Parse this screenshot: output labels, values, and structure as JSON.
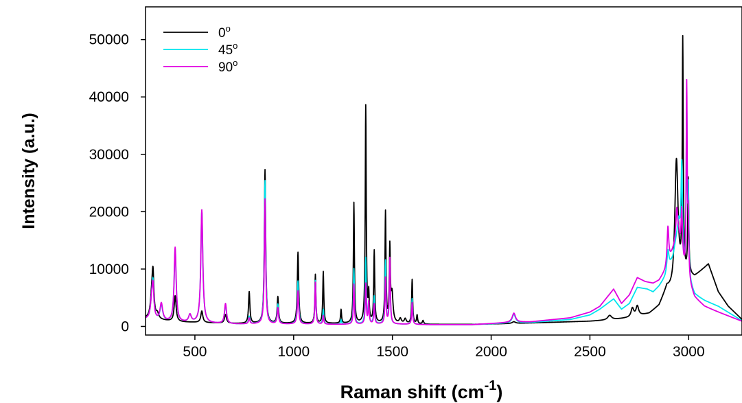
{
  "chart_data": {
    "type": "line",
    "title": "",
    "xlabel": "Raman shift (cm",
    "xlabel_superscript": "-1",
    "xlabel_suffix": ")",
    "ylabel": "Intensity (a.u.)",
    "xlim": [
      250,
      3270
    ],
    "ylim": [
      -1500,
      55700
    ],
    "xticks": [
      500,
      1000,
      1500,
      2000,
      2500,
      3000
    ],
    "yticks": [
      0,
      10000,
      20000,
      30000,
      40000,
      50000
    ],
    "grid": false,
    "legend_position": "top-left",
    "line_width": 1.8,
    "series": [
      {
        "name": "0°",
        "name_base": "0",
        "name_superscript": "o",
        "color": "#000000",
        "baseline": [
          [
            250,
            1400
          ],
          [
            300,
            1200
          ],
          [
            400,
            800
          ],
          [
            700,
            500
          ],
          [
            1000,
            500
          ],
          [
            1200,
            500
          ],
          [
            1500,
            500
          ],
          [
            1700,
            350
          ],
          [
            1900,
            350
          ],
          [
            2100,
            500
          ],
          [
            2300,
            700
          ],
          [
            2500,
            900
          ],
          [
            2600,
            1100
          ],
          [
            2700,
            1500
          ],
          [
            2800,
            2200
          ],
          [
            2850,
            3500
          ],
          [
            2890,
            6500
          ],
          [
            2920,
            5500
          ],
          [
            2980,
            8500
          ],
          [
            3030,
            8500
          ],
          [
            3060,
            9500
          ],
          [
            3100,
            10800
          ],
          [
            3150,
            6000
          ],
          [
            3200,
            3500
          ],
          [
            3270,
            1200
          ]
        ],
        "peaks": [
          [
            282,
            4000,
            8
          ],
          [
            288,
            6500,
            5
          ],
          [
            310,
            900,
            8
          ],
          [
            400,
            4500,
            6
          ],
          [
            535,
            2000,
            6
          ],
          [
            655,
            1500,
            6
          ],
          [
            775,
            5500,
            4
          ],
          [
            855,
            26800,
            4
          ],
          [
            920,
            4600,
            4
          ],
          [
            1022,
            12400,
            4
          ],
          [
            1110,
            8500,
            3
          ],
          [
            1150,
            9000,
            3
          ],
          [
            1240,
            2400,
            3
          ],
          [
            1305,
            21000,
            3
          ],
          [
            1365,
            37800,
            3
          ],
          [
            1380,
            4800,
            3
          ],
          [
            1408,
            12500,
            3
          ],
          [
            1465,
            19300,
            3
          ],
          [
            1487,
            12800,
            3
          ],
          [
            1498,
            5000,
            6
          ],
          [
            1540,
            800,
            6
          ],
          [
            1565,
            800,
            6
          ],
          [
            1600,
            7700,
            3
          ],
          [
            1625,
            1500,
            3
          ],
          [
            1655,
            600,
            4
          ],
          [
            2115,
            300,
            10
          ],
          [
            2600,
            800,
            12
          ],
          [
            2715,
            1500,
            8
          ],
          [
            2740,
            1700,
            8
          ],
          [
            2938,
            22500,
            10
          ],
          [
            2970,
            40500,
            3
          ],
          [
            2998,
            16500,
            3
          ]
        ]
      },
      {
        "name": "45°",
        "name_base": "45",
        "name_superscript": "o",
        "color": "#00e5ee",
        "baseline": [
          [
            250,
            1200
          ],
          [
            300,
            1000
          ],
          [
            400,
            700
          ],
          [
            700,
            400
          ],
          [
            1000,
            400
          ],
          [
            1200,
            350
          ],
          [
            1500,
            400
          ],
          [
            1700,
            300
          ],
          [
            1900,
            300
          ],
          [
            2100,
            600
          ],
          [
            2200,
            700
          ],
          [
            2400,
            1200
          ],
          [
            2500,
            2000
          ],
          [
            2550,
            3000
          ],
          [
            2620,
            4800
          ],
          [
            2660,
            3000
          ],
          [
            2700,
            4000
          ],
          [
            2740,
            6800
          ],
          [
            2790,
            6500
          ],
          [
            2820,
            6000
          ],
          [
            2850,
            7000
          ],
          [
            2880,
            8500
          ],
          [
            2920,
            12000
          ],
          [
            2950,
            18000
          ],
          [
            2980,
            9000
          ],
          [
            3030,
            5500
          ],
          [
            3080,
            4500
          ],
          [
            3150,
            3500
          ],
          [
            3270,
            1000
          ]
        ],
        "peaks": [
          [
            282,
            3500,
            8
          ],
          [
            288,
            5000,
            5
          ],
          [
            330,
            2700,
            8
          ],
          [
            400,
            12700,
            6
          ],
          [
            475,
            1300,
            8
          ],
          [
            535,
            19500,
            6
          ],
          [
            655,
            3300,
            6
          ],
          [
            775,
            1300,
            4
          ],
          [
            855,
            25000,
            4
          ],
          [
            920,
            3400,
            4
          ],
          [
            1022,
            7500,
            4
          ],
          [
            1110,
            7600,
            3
          ],
          [
            1150,
            2600,
            3
          ],
          [
            1240,
            800,
            3
          ],
          [
            1305,
            9700,
            3
          ],
          [
            1365,
            11500,
            3
          ],
          [
            1380,
            3500,
            3
          ],
          [
            1408,
            4800,
            3
          ],
          [
            1465,
            11000,
            3
          ],
          [
            1487,
            10000,
            3
          ],
          [
            1600,
            4500,
            3
          ],
          [
            2115,
            1500,
            10
          ],
          [
            2895,
            3500,
            6
          ],
          [
            2965,
            15000,
            4
          ],
          [
            2990,
            29000,
            3
          ],
          [
            2998,
            14000,
            3
          ]
        ]
      },
      {
        "name": "90°",
        "name_base": "90",
        "name_superscript": "o",
        "color": "#e000e0",
        "baseline": [
          [
            250,
            1200
          ],
          [
            300,
            1000
          ],
          [
            400,
            700
          ],
          [
            700,
            400
          ],
          [
            1000,
            400
          ],
          [
            1200,
            350
          ],
          [
            1500,
            400
          ],
          [
            1700,
            300
          ],
          [
            1900,
            300
          ],
          [
            2100,
            700
          ],
          [
            2200,
            800
          ],
          [
            2400,
            1500
          ],
          [
            2500,
            2500
          ],
          [
            2550,
            3500
          ],
          [
            2620,
            6500
          ],
          [
            2660,
            4000
          ],
          [
            2700,
            5500
          ],
          [
            2740,
            8500
          ],
          [
            2780,
            7800
          ],
          [
            2820,
            7500
          ],
          [
            2850,
            8000
          ],
          [
            2880,
            9500
          ],
          [
            2920,
            13000
          ],
          [
            2950,
            15000
          ],
          [
            2980,
            9000
          ],
          [
            3030,
            5000
          ],
          [
            3080,
            3500
          ],
          [
            3150,
            2500
          ],
          [
            3270,
            900
          ]
        ],
        "peaks": [
          [
            282,
            3500,
            8
          ],
          [
            288,
            4500,
            5
          ],
          [
            330,
            3000,
            8
          ],
          [
            400,
            13000,
            6
          ],
          [
            475,
            1300,
            8
          ],
          [
            535,
            19700,
            6
          ],
          [
            655,
            3500,
            6
          ],
          [
            775,
            1000,
            4
          ],
          [
            855,
            21800,
            4
          ],
          [
            920,
            2800,
            4
          ],
          [
            1022,
            5800,
            4
          ],
          [
            1110,
            7300,
            3
          ],
          [
            1150,
            1500,
            3
          ],
          [
            1305,
            7000,
            3
          ],
          [
            1365,
            7000,
            3
          ],
          [
            1380,
            3800,
            3
          ],
          [
            1408,
            3500,
            3
          ],
          [
            1465,
            8000,
            3
          ],
          [
            1487,
            11500,
            3
          ],
          [
            1600,
            3800,
            3
          ],
          [
            2115,
            1600,
            10
          ],
          [
            2895,
            6500,
            5
          ],
          [
            2940,
            6000,
            6
          ],
          [
            2965,
            8000,
            4
          ],
          [
            2990,
            33300,
            3
          ],
          [
            2998,
            10000,
            3
          ]
        ]
      }
    ]
  }
}
